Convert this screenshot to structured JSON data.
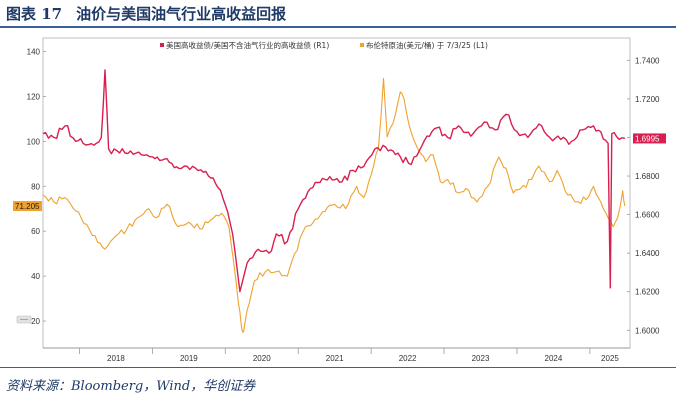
{
  "figure": {
    "number_label": "图表 17",
    "title": "油价与美国油气行业高收益回报"
  },
  "source": "资料来源：Bloomberg，Wind，华创证券",
  "colors": {
    "series_ratio": "#d81f4f",
    "series_brent": "#f0a22e",
    "title": "#1f3a66",
    "rule": "#3a5f9a"
  },
  "chart_data": {
    "type": "line",
    "title": "",
    "x_tick_labels": [
      "2018",
      "2019",
      "2020",
      "2021",
      "2022",
      "2023",
      "2024",
      "2025"
    ],
    "xlim": [
      2017.5,
      2025.55
    ],
    "left_axis": {
      "ylim": [
        8,
        146
      ],
      "ticks": [
        20,
        40,
        60,
        80,
        100,
        120,
        140
      ]
    },
    "right_axis": {
      "ylim": [
        1.5908,
        1.7516
      ],
      "ticks": [
        "1.6000",
        "1.6200",
        "1.6400",
        "1.6600",
        "1.6800",
        "1.7000",
        "1.7200",
        "1.7400"
      ]
    },
    "series": [
      {
        "name": "美国高收益债/美国不含油气行业的高收益债 (R1)",
        "axis": "right",
        "color": "#d81f4f",
        "last_value_label": "1.6995",
        "points": [
          [
            2017.5,
            1.702
          ],
          [
            2017.65,
            1.7
          ],
          [
            2017.8,
            1.706
          ],
          [
            2017.95,
            1.698
          ],
          [
            2018.05,
            1.697
          ],
          [
            2018.2,
            1.696
          ],
          [
            2018.3,
            1.7
          ],
          [
            2018.35,
            1.735
          ],
          [
            2018.4,
            1.694
          ],
          [
            2018.55,
            1.692
          ],
          [
            2018.7,
            1.693
          ],
          [
            2018.85,
            1.691
          ],
          [
            2019.0,
            1.69
          ],
          [
            2019.2,
            1.689
          ],
          [
            2019.4,
            1.684
          ],
          [
            2019.55,
            1.685
          ],
          [
            2019.7,
            1.682
          ],
          [
            2019.8,
            1.679
          ],
          [
            2019.9,
            1.674
          ],
          [
            2020.0,
            1.665
          ],
          [
            2020.1,
            1.65
          ],
          [
            2020.2,
            1.62
          ],
          [
            2020.3,
            1.635
          ],
          [
            2020.45,
            1.642
          ],
          [
            2020.6,
            1.64
          ],
          [
            2020.7,
            1.65
          ],
          [
            2020.85,
            1.646
          ],
          [
            2021.0,
            1.663
          ],
          [
            2021.2,
            1.674
          ],
          [
            2021.4,
            1.678
          ],
          [
            2021.6,
            1.677
          ],
          [
            2021.75,
            1.683
          ],
          [
            2021.9,
            1.685
          ],
          [
            2022.05,
            1.694
          ],
          [
            2022.2,
            1.695
          ],
          [
            2022.4,
            1.69
          ],
          [
            2022.55,
            1.686
          ],
          [
            2022.7,
            1.696
          ],
          [
            2022.9,
            1.705
          ],
          [
            2023.05,
            1.7
          ],
          [
            2023.2,
            1.706
          ],
          [
            2023.4,
            1.702
          ],
          [
            2023.55,
            1.708
          ],
          [
            2023.7,
            1.704
          ],
          [
            2023.85,
            1.712
          ],
          [
            2024.0,
            1.703
          ],
          [
            2024.15,
            1.7
          ],
          [
            2024.3,
            1.707
          ],
          [
            2024.45,
            1.7
          ],
          [
            2024.6,
            1.699
          ],
          [
            2024.75,
            1.698
          ],
          [
            2024.9,
            1.704
          ],
          [
            2025.05,
            1.706
          ],
          [
            2025.15,
            1.703
          ],
          [
            2025.25,
            1.697
          ],
          [
            2025.28,
            1.622
          ],
          [
            2025.3,
            1.702
          ],
          [
            2025.4,
            1.699
          ],
          [
            2025.48,
            1.6995
          ]
        ]
      },
      {
        "name": "布伦特原油(美元/桶) 于 7/3/25 (L1)",
        "axis": "left",
        "color": "#f0a22e",
        "last_value_label": "71.205",
        "points": [
          [
            2017.5,
            76
          ],
          [
            2017.65,
            73
          ],
          [
            2017.8,
            75
          ],
          [
            2017.95,
            69
          ],
          [
            2018.1,
            63
          ],
          [
            2018.25,
            55
          ],
          [
            2018.35,
            52
          ],
          [
            2018.5,
            58
          ],
          [
            2018.65,
            61
          ],
          [
            2018.8,
            66
          ],
          [
            2018.95,
            70
          ],
          [
            2019.05,
            66
          ],
          [
            2019.2,
            72
          ],
          [
            2019.35,
            62
          ],
          [
            2019.5,
            64
          ],
          [
            2019.65,
            61
          ],
          [
            2019.8,
            65
          ],
          [
            2019.95,
            68
          ],
          [
            2020.05,
            62
          ],
          [
            2020.12,
            45
          ],
          [
            2020.18,
            28
          ],
          [
            2020.22,
            18
          ],
          [
            2020.25,
            15
          ],
          [
            2020.3,
            25
          ],
          [
            2020.4,
            38
          ],
          [
            2020.55,
            42
          ],
          [
            2020.7,
            42
          ],
          [
            2020.85,
            40
          ],
          [
            2020.95,
            50
          ],
          [
            2021.1,
            62
          ],
          [
            2021.3,
            67
          ],
          [
            2021.5,
            72
          ],
          [
            2021.65,
            70
          ],
          [
            2021.8,
            80
          ],
          [
            2021.9,
            75
          ],
          [
            2022.0,
            85
          ],
          [
            2022.1,
            97
          ],
          [
            2022.17,
            128
          ],
          [
            2022.22,
            102
          ],
          [
            2022.3,
            108
          ],
          [
            2022.4,
            122
          ],
          [
            2022.45,
            119
          ],
          [
            2022.55,
            104
          ],
          [
            2022.65,
            96
          ],
          [
            2022.75,
            91
          ],
          [
            2022.85,
            94
          ],
          [
            2022.95,
            82
          ],
          [
            2023.05,
            83
          ],
          [
            2023.2,
            77
          ],
          [
            2023.3,
            79
          ],
          [
            2023.45,
            73
          ],
          [
            2023.6,
            80
          ],
          [
            2023.75,
            93
          ],
          [
            2023.85,
            88
          ],
          [
            2023.95,
            77
          ],
          [
            2024.05,
            79
          ],
          [
            2024.2,
            83
          ],
          [
            2024.3,
            89
          ],
          [
            2024.45,
            82
          ],
          [
            2024.55,
            87
          ],
          [
            2024.7,
            76
          ],
          [
            2024.8,
            73
          ],
          [
            2024.95,
            74
          ],
          [
            2025.05,
            80
          ],
          [
            2025.15,
            73
          ],
          [
            2025.25,
            66
          ],
          [
            2025.32,
            62
          ],
          [
            2025.38,
            66
          ],
          [
            2025.45,
            78
          ],
          [
            2025.48,
            71.2
          ]
        ]
      }
    ],
    "legend_position": "top-center",
    "grid": false
  }
}
